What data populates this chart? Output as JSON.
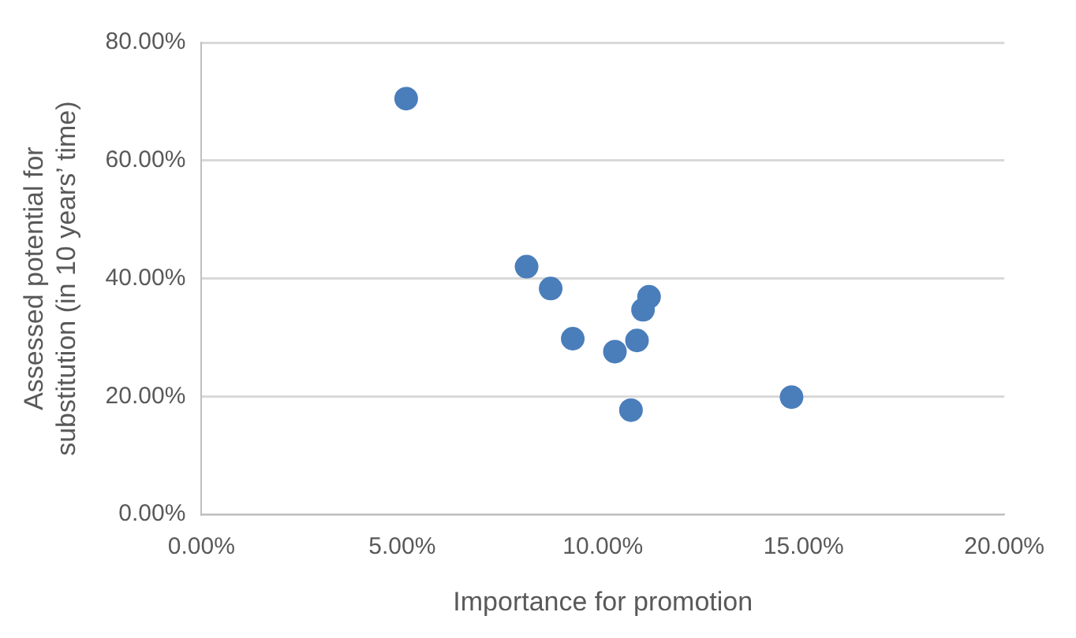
{
  "chart_data": {
    "type": "scatter",
    "xlabel": "Importance for promotion",
    "ylabel": "Assessed potential for substitution (in 10 years’ time)",
    "x": [
      5.1,
      8.1,
      8.7,
      11.15,
      11.0,
      9.25,
      10.85,
      10.3,
      10.7,
      14.7
    ],
    "series": [
      {
        "color": "#4a7ebb",
        "values": [
          70.5,
          42.0,
          38.3,
          36.9,
          34.7,
          29.8,
          29.5,
          27.6,
          17.7,
          19.9
        ]
      }
    ],
    "xlim": [
      0,
      20
    ],
    "xticks": [
      {
        "value": 0,
        "label": "0.00%"
      },
      {
        "value": 5,
        "label": "5.00%"
      },
      {
        "value": 10,
        "label": "10.00%"
      },
      {
        "value": 15,
        "label": "15.00%"
      },
      {
        "value": 20,
        "label": "20.00%"
      }
    ],
    "ylim": [
      0,
      80
    ],
    "yticks": [
      {
        "value": 0,
        "label": "0.00%"
      },
      {
        "value": 20,
        "label": "20.00%"
      },
      {
        "value": 40,
        "label": "40.00%"
      },
      {
        "value": 60,
        "label": "60.00%"
      },
      {
        "value": 80,
        "label": "80.00%"
      }
    ],
    "grid": "y",
    "legend": false,
    "marker": "circle"
  }
}
